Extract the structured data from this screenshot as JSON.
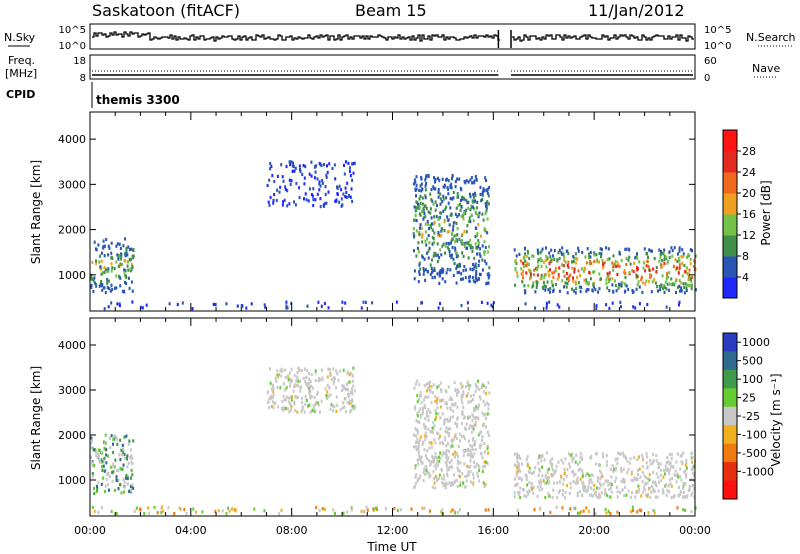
{
  "header": {
    "station": "Saskatoon (fitACF)",
    "beam": "Beam 15",
    "date": "11/Jan/2012"
  },
  "status_panel": {
    "nsky_label": "N.Sky",
    "nsearch_label": "N.Search",
    "freq_label_1": "Freq.",
    "freq_label_2": "[MHz]",
    "nave_label": "Nave",
    "cpid_label": "CPID",
    "cpid_value": "themis 3300",
    "noise_ticks": [
      "10^5",
      "10^0"
    ],
    "noise_ticks_right": [
      "10^5",
      "10^0"
    ],
    "freq_ticks": [
      "18",
      "8"
    ],
    "nave_ticks": [
      "60",
      "0"
    ]
  },
  "chart_data": [
    {
      "type": "heatmap",
      "name": "power",
      "xlabel": "",
      "ylabel": "Slant Range [km]",
      "xlim": [
        0,
        24
      ],
      "ylim": [
        200,
        4600
      ],
      "y_ticks": [
        "1000",
        "2000",
        "3000",
        "4000"
      ],
      "colorbar": {
        "label": "Power [dB]",
        "ticks": [
          "4",
          "8",
          "12",
          "16",
          "20",
          "24",
          "28"
        ],
        "colors": [
          "#1f28ff",
          "#2a55b5",
          "#3f8f4a",
          "#73c247",
          "#f0a020",
          "#f06a1d",
          "#e32a20",
          "#ff1414"
        ]
      },
      "data_gaps_ut": [
        [
          16.2,
          16.7
        ]
      ],
      "regions": [
        {
          "ut": [
            0.0,
            1.7
          ],
          "range": [
            600,
            1800
          ],
          "level": "medium"
        },
        {
          "ut": [
            7.0,
            10.5
          ],
          "range": [
            2500,
            3500
          ],
          "level": "low"
        },
        {
          "ut": [
            12.8,
            15.8
          ],
          "range": [
            800,
            3200
          ],
          "level": "medium"
        },
        {
          "ut": [
            16.8,
            24.0
          ],
          "range": [
            600,
            1600
          ],
          "level": "high"
        },
        {
          "ut": [
            0.0,
            24.0
          ],
          "range": [
            250,
            400
          ],
          "level": "low"
        }
      ]
    },
    {
      "type": "heatmap",
      "name": "velocity",
      "xlabel": "Time UT",
      "ylabel": "Slant Range [km]",
      "xlim": [
        0,
        24
      ],
      "ylim": [
        200,
        4600
      ],
      "x_ticks": [
        "00:00",
        "04:00",
        "08:00",
        "12:00",
        "16:00",
        "20:00",
        "00:00"
      ],
      "y_ticks": [
        "1000",
        "2000",
        "3000",
        "4000"
      ],
      "colorbar": {
        "label": "Velocity [m s⁻¹]",
        "ticks": [
          "1000",
          "500",
          "100",
          "25",
          "-25",
          "-100",
          "-500",
          "-1000"
        ],
        "colors": [
          "#2a3cc0",
          "#2f6a8f",
          "#3f9b4a",
          "#66cc33",
          "#c8c8c8",
          "#f0b020",
          "#f07a10",
          "#e83010",
          "#ff1010"
        ]
      },
      "data_gaps_ut": [
        [
          16.2,
          16.7
        ]
      ],
      "regions": [
        {
          "ut": [
            0.0,
            1.7
          ],
          "range": [
            700,
            2000
          ],
          "level": "mixed-positive"
        },
        {
          "ut": [
            7.0,
            10.5
          ],
          "range": [
            2500,
            3500
          ],
          "level": "ground-scatter"
        },
        {
          "ut": [
            12.8,
            15.8
          ],
          "range": [
            800,
            3200
          ],
          "level": "ground-scatter"
        },
        {
          "ut": [
            16.8,
            24.0
          ],
          "range": [
            600,
            1600
          ],
          "level": "ground-scatter"
        },
        {
          "ut": [
            0.0,
            24.0
          ],
          "range": [
            250,
            400
          ],
          "level": "negative"
        }
      ]
    }
  ]
}
